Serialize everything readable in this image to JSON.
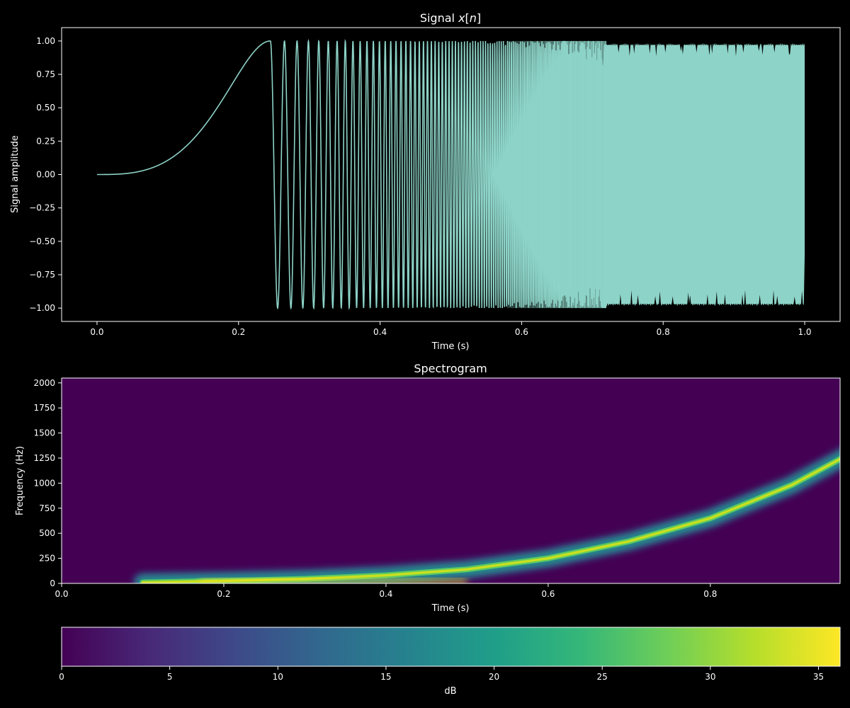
{
  "chart_data": [
    {
      "type": "line",
      "title_parts": [
        "Signal ",
        "x",
        "[",
        "n",
        "]"
      ],
      "xlabel": "Time (s)",
      "ylabel": "Signal amplitude",
      "xlim": [
        -0.05,
        1.05
      ],
      "ylim": [
        -1.1,
        1.1
      ],
      "xticks": [
        0.0,
        0.2,
        0.4,
        0.6,
        0.8,
        1.0
      ],
      "xtick_labels": [
        "0.0",
        "0.2",
        "0.4",
        "0.6",
        "0.8",
        "1.0"
      ],
      "yticks": [
        1.0,
        0.75,
        0.5,
        0.25,
        0.0,
        -0.25,
        -0.5,
        -0.75,
        -1.0
      ],
      "ytick_labels": [
        "1.00",
        "0.75",
        "0.50",
        "0.25",
        "0.00",
        "−0.25",
        "−0.50",
        "−0.75",
        "−1.00"
      ],
      "line_color": "#8dd3c7",
      "signal": "exponential chirp, amplitude 1, 0 to 1 s, frequency rising from ~0 Hz to ~1250 Hz",
      "grid": false
    },
    {
      "type": "heatmap",
      "title": "Spectrogram",
      "xlabel": "Time (s)",
      "ylabel": "Frequency (Hz)",
      "xlim": [
        0.0,
        0.96
      ],
      "ylim": [
        0,
        2048
      ],
      "xticks": [
        0.0,
        0.2,
        0.4,
        0.6,
        0.8
      ],
      "xtick_labels": [
        "0.0",
        "0.2",
        "0.4",
        "0.6",
        "0.8"
      ],
      "yticks": [
        0,
        250,
        500,
        750,
        1000,
        1250,
        1500,
        1750,
        2000
      ],
      "ytick_labels": [
        "0",
        "250",
        "500",
        "750",
        "1000",
        "1250",
        "1500",
        "1750",
        "2000"
      ],
      "ridge": [
        {
          "t": 0.1,
          "f": 10
        },
        {
          "t": 0.2,
          "f": 25
        },
        {
          "t": 0.3,
          "f": 45
        },
        {
          "t": 0.4,
          "f": 80
        },
        {
          "t": 0.5,
          "f": 140
        },
        {
          "t": 0.6,
          "f": 250
        },
        {
          "t": 0.7,
          "f": 420
        },
        {
          "t": 0.8,
          "f": 650
        },
        {
          "t": 0.9,
          "f": 980
        },
        {
          "t": 0.96,
          "f": 1240
        }
      ],
      "colormap": "viridis"
    },
    {
      "type": "colorbar",
      "label": "dB",
      "range": [
        0,
        36
      ],
      "ticks": [
        0,
        5,
        10,
        15,
        20,
        25,
        30,
        35
      ],
      "tick_labels": [
        "0",
        "5",
        "10",
        "15",
        "20",
        "25",
        "30",
        "35"
      ],
      "colormap": "viridis",
      "colormap_stops": [
        "#440154",
        "#482878",
        "#3e4989",
        "#31688e",
        "#26828e",
        "#1f9e89",
        "#35b779",
        "#6ece58",
        "#b5de2b",
        "#fde725"
      ]
    }
  ]
}
